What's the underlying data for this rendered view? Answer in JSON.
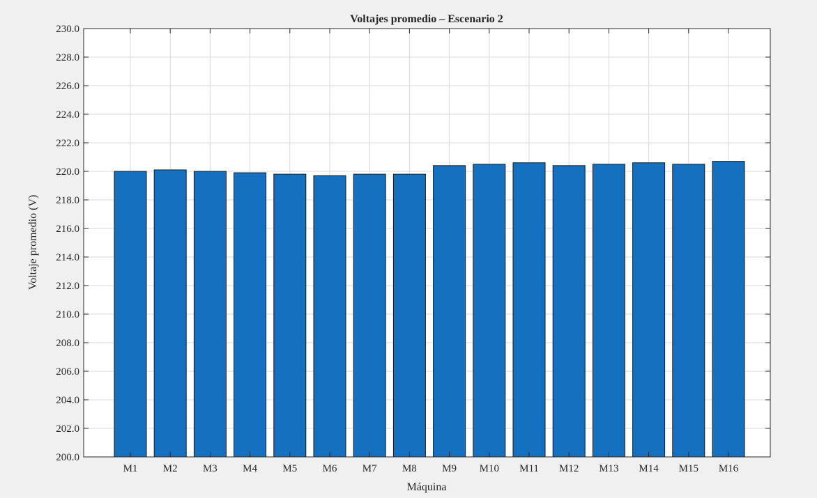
{
  "chart_data": {
    "type": "bar",
    "title": "Voltajes promedio – Escenario 2",
    "xlabel": "Máquina",
    "ylabel": "Voltaje promedio (V)",
    "categories": [
      "M1",
      "M2",
      "M3",
      "M4",
      "M5",
      "M6",
      "M7",
      "M8",
      "M9",
      "M10",
      "M11",
      "M12",
      "M13",
      "M14",
      "M15",
      "M16"
    ],
    "values": [
      220.0,
      220.1,
      220.0,
      219.9,
      219.8,
      219.7,
      219.8,
      219.8,
      220.4,
      220.5,
      220.6,
      220.4,
      220.5,
      220.6,
      220.5,
      220.7
    ],
    "ylim": [
      200,
      230
    ],
    "yticks": [
      "200.0",
      "202.0",
      "204.0",
      "206.0",
      "208.0",
      "210.0",
      "212.0",
      "214.0",
      "216.0",
      "218.0",
      "220.0",
      "222.0",
      "224.0",
      "226.0",
      "228.0",
      "230.0"
    ],
    "grid": true,
    "bar_color": "#1570bf",
    "edge_color": "#1a1a1a"
  }
}
